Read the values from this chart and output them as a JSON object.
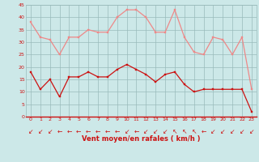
{
  "hours": [
    0,
    1,
    2,
    3,
    4,
    5,
    6,
    7,
    8,
    9,
    10,
    11,
    12,
    13,
    14,
    15,
    16,
    17,
    18,
    19,
    20,
    21,
    22,
    23
  ],
  "mean_wind": [
    18,
    11,
    15,
    8,
    16,
    16,
    18,
    16,
    16,
    19,
    21,
    19,
    17,
    14,
    17,
    18,
    13,
    10,
    11,
    11,
    11,
    11,
    11,
    2
  ],
  "gust_wind": [
    38,
    32,
    31,
    25,
    32,
    32,
    35,
    34,
    34,
    40,
    43,
    43,
    40,
    34,
    34,
    43,
    32,
    26,
    25,
    32,
    31,
    25,
    32,
    11
  ],
  "wind_dirs": [
    225,
    225,
    225,
    270,
    270,
    270,
    270,
    270,
    270,
    270,
    225,
    270,
    225,
    225,
    225,
    315,
    315,
    315,
    270,
    225,
    225,
    225,
    225,
    225
  ],
  "bg_color": "#cce8e8",
  "grid_color": "#99bbbb",
  "mean_color": "#cc1111",
  "gust_color": "#ee8888",
  "xlabel": "Vent moyen/en rafales ( km/h )",
  "xlabel_color": "#cc1111",
  "tick_color": "#cc1111",
  "ylim": [
    0,
    45
  ],
  "yticks": [
    0,
    5,
    10,
    15,
    20,
    25,
    30,
    35,
    40,
    45
  ]
}
